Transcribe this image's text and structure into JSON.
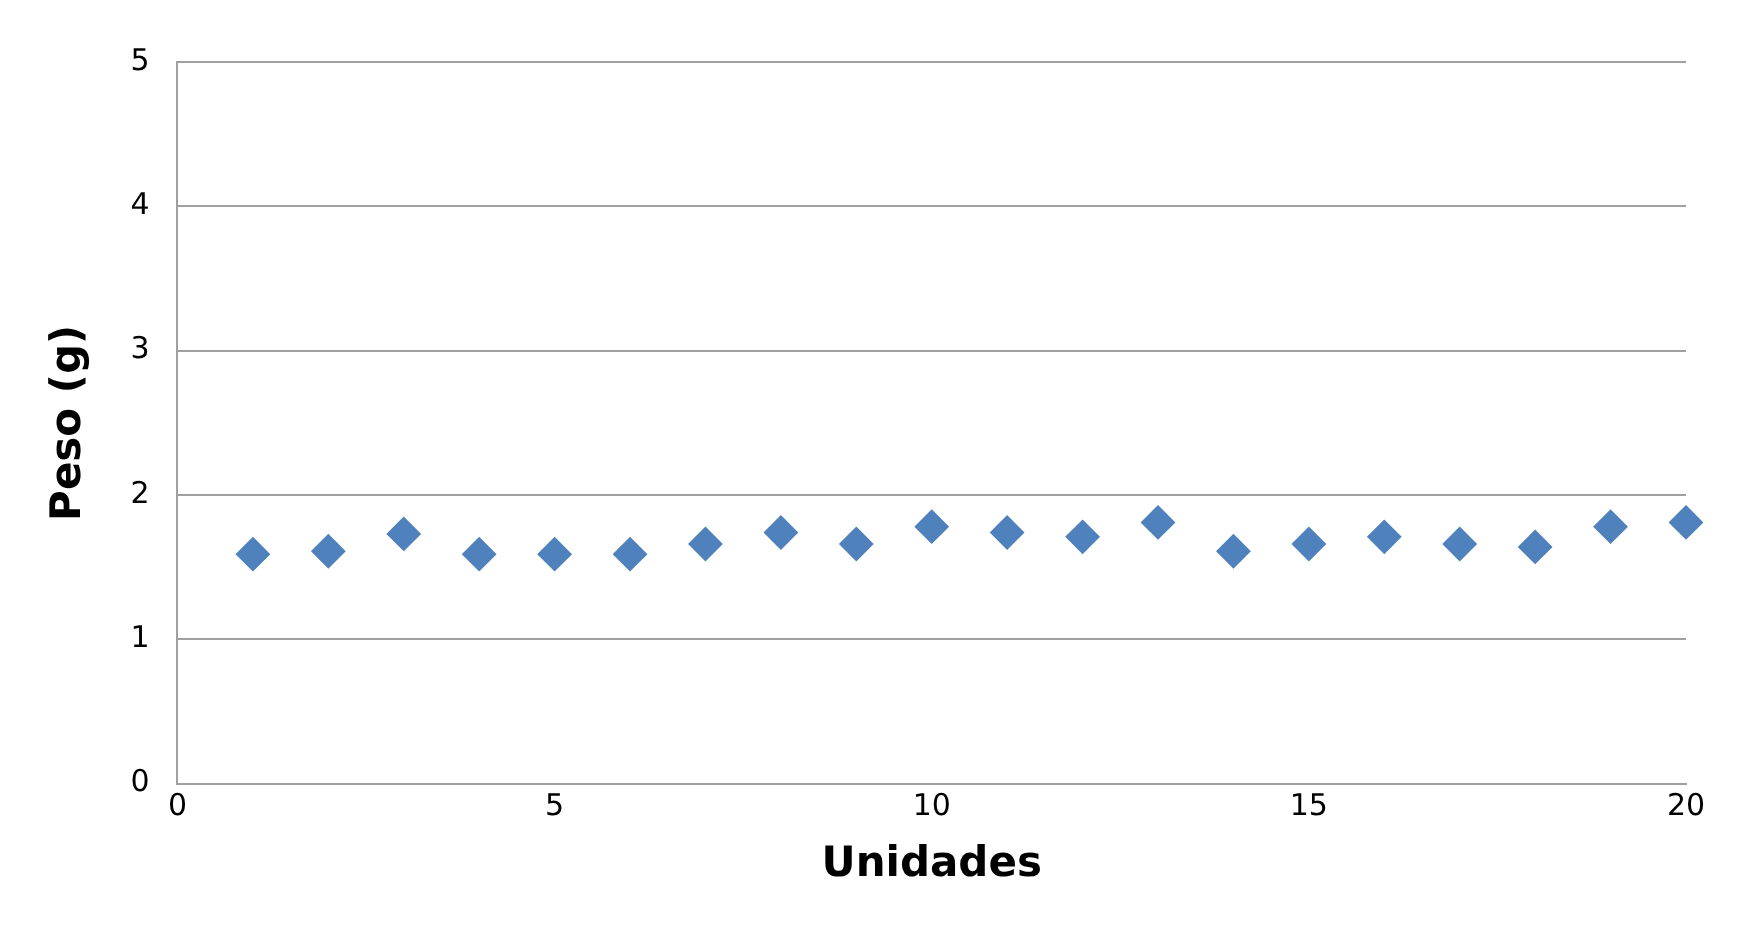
{
  "chart_data": {
    "type": "scatter",
    "xlabel": "Unidades",
    "ylabel": "Peso (g)",
    "x": [
      1,
      2,
      3,
      4,
      5,
      6,
      7,
      8,
      9,
      10,
      11,
      12,
      13,
      14,
      15,
      16,
      17,
      18,
      19,
      20
    ],
    "series": [
      {
        "color": "#4f81bd",
        "values": [
          1.59,
          1.61,
          1.73,
          1.59,
          1.59,
          1.59,
          1.66,
          1.74,
          1.66,
          1.78,
          1.74,
          1.71,
          1.81,
          1.61,
          1.66,
          1.71,
          1.66,
          1.64,
          1.78,
          1.81
        ]
      }
    ],
    "xlim": [
      0,
      20
    ],
    "xticks": [
      0,
      5,
      10,
      15,
      20
    ],
    "ylim": [
      0,
      5
    ],
    "yticks": [
      0,
      1,
      2,
      3,
      4,
      5
    ],
    "grid": "y",
    "legend": false,
    "marker": "diamond"
  }
}
